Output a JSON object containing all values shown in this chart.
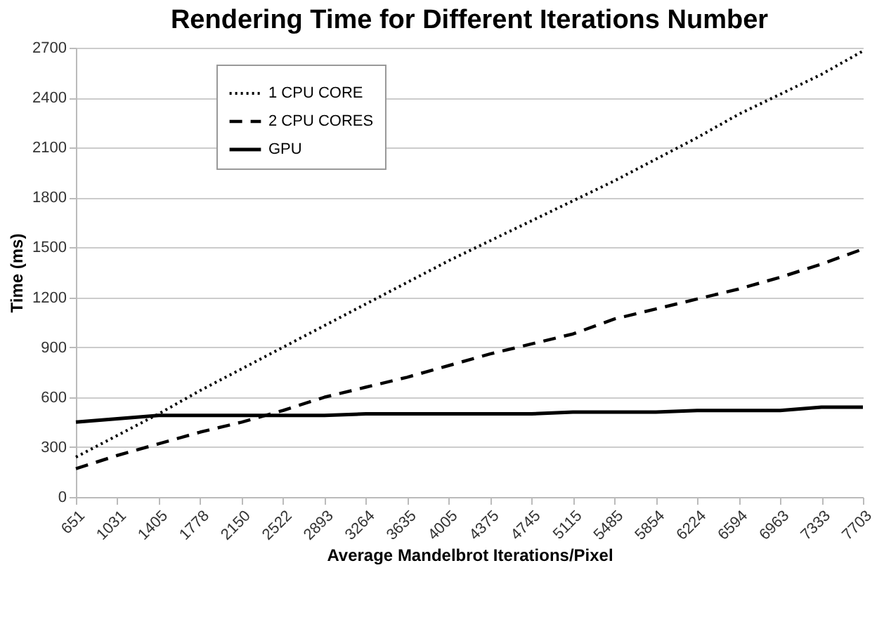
{
  "chart_data": {
    "type": "line",
    "title": "Rendering Time for Different Iterations Number",
    "xlabel": "Average Mandelbrot Iterations/Pixel",
    "ylabel": "Time (ms)",
    "categories": [
      "651",
      "1031",
      "1405",
      "1778",
      "2150",
      "2522",
      "2893",
      "3264",
      "3635",
      "4005",
      "4375",
      "4745",
      "5115",
      "5485",
      "5854",
      "6224",
      "6594",
      "6963",
      "7333",
      "7703"
    ],
    "series": [
      {
        "name": "1 CPU CORE",
        "color": "#000000",
        "line_style": "dotted",
        "values": [
          240,
          370,
          500,
          640,
          770,
          900,
          1030,
          1160,
          1290,
          1420,
          1540,
          1660,
          1780,
          1900,
          2030,
          2160,
          2300,
          2420,
          2540,
          2680
        ]
      },
      {
        "name": "2 CPU CORES",
        "color": "#000000",
        "line_style": "dashed",
        "values": [
          170,
          250,
          320,
          390,
          450,
          520,
          600,
          660,
          720,
          790,
          860,
          920,
          980,
          1070,
          1130,
          1190,
          1250,
          1320,
          1400,
          1490
        ]
      },
      {
        "name": "GPU",
        "color": "#000000",
        "line_style": "solid",
        "values": [
          450,
          470,
          490,
          490,
          490,
          490,
          490,
          500,
          500,
          500,
          500,
          500,
          510,
          510,
          510,
          520,
          520,
          520,
          540,
          540
        ]
      }
    ],
    "ylim": [
      0,
      2700
    ],
    "yticks": [
      0,
      300,
      600,
      900,
      1200,
      1500,
      1800,
      2100,
      2400,
      2700
    ],
    "grid": "y",
    "legend": "top left"
  }
}
